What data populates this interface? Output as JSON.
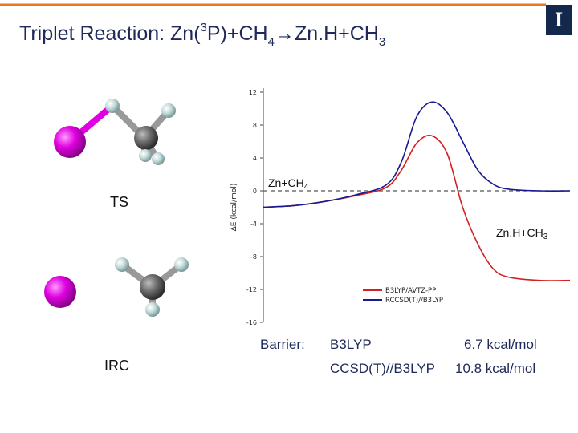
{
  "header": {
    "title_prefix": "Triplet Reaction: Zn(",
    "title_sup": "3",
    "title_mid": "P)+CH",
    "title_sub1": "4",
    "title_arrow": "→",
    "title_mid2": "Zn.H+CH",
    "title_sub2": "3",
    "logo_letter": "I",
    "accent": "#e87722",
    "brand": "#13294b"
  },
  "structures": {
    "ts_label": "TS",
    "irc_label": "IRC"
  },
  "barrier": {
    "label": "Barrier:",
    "rows": [
      {
        "method": "B3LYP",
        "value": "6.7 kcal/mol"
      },
      {
        "method": "CCSD(T)//B3LYP",
        "value": "10.8 kcal/mol"
      }
    ]
  },
  "chart_data": {
    "type": "line",
    "ylabel": "ΔE (kcal/mol)",
    "ylim": [
      -16,
      12
    ],
    "yticks": [
      "12",
      "8",
      "4",
      "0",
      "-4",
      "-8",
      "-12",
      "-16"
    ],
    "grid": false,
    "legend_position": "bottom-right",
    "annotations": [
      {
        "text": "Zn+CH",
        "sub": "4",
        "near": "left-plateau"
      },
      {
        "text": "Zn.H+CH",
        "sub": "3",
        "near": "right-plateau"
      }
    ],
    "x": [
      0,
      0.1,
      0.2,
      0.3,
      0.4,
      0.45,
      0.5,
      0.55,
      0.6,
      0.65,
      0.7,
      0.75,
      0.8,
      0.9,
      1.0
    ],
    "series": [
      {
        "name": "B3LYP/AVTZ-PP",
        "color": "#d42020",
        "values": [
          -2.0,
          -1.8,
          -1.3,
          -0.6,
          0.4,
          2.5,
          5.8,
          6.7,
          4.5,
          -2.0,
          -6.5,
          -9.5,
          -10.5,
          -10.9,
          -10.9
        ]
      },
      {
        "name": "RCCSD(T)//B3LYP",
        "color": "#1a1a90",
        "values": [
          -2.0,
          -1.8,
          -1.3,
          -0.5,
          0.7,
          3.5,
          9.0,
          10.8,
          9.5,
          6.0,
          2.5,
          0.8,
          0.2,
          0.0,
          0.0
        ]
      }
    ]
  }
}
